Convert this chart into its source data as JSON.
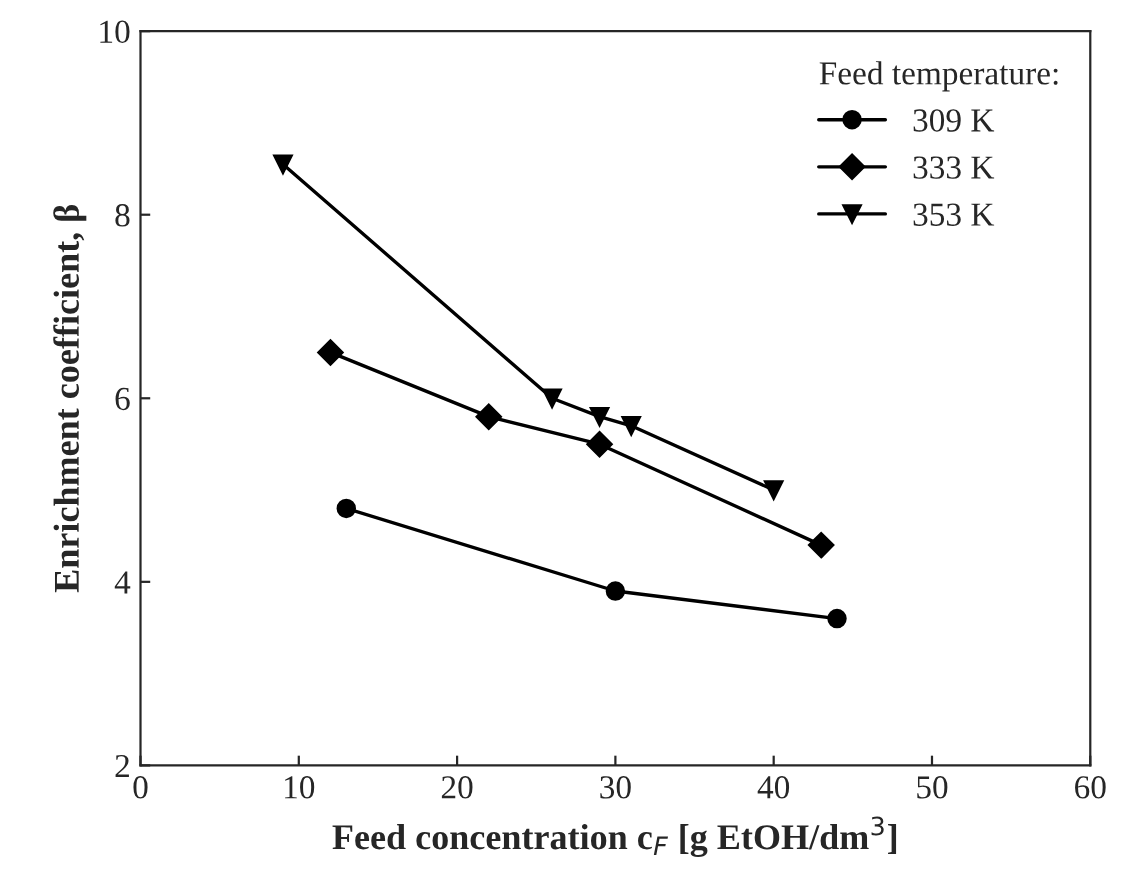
{
  "chart_data": {
    "type": "line",
    "xlabel": "Feed concentration c$_{F}$ [g EtOH/dm$^{3}$]",
    "ylabel": "Enrichment coefficient, β",
    "legend_title": "Feed temperature:",
    "legend": "top right",
    "grid": false,
    "xlim": [
      0,
      60
    ],
    "xticks": [
      0,
      10,
      20,
      30,
      40,
      50,
      60
    ],
    "ylim": [
      2,
      10
    ],
    "yticks": [
      2,
      4,
      6,
      8,
      10
    ],
    "series": [
      {
        "name": "309 K",
        "color": "#000000",
        "marker": "circle",
        "x": [
          13,
          30,
          44
        ],
        "values": [
          4.8,
          3.9,
          3.6
        ]
      },
      {
        "name": "333 K",
        "color": "#000000",
        "marker": "diamond",
        "x": [
          12,
          22,
          29,
          43
        ],
        "values": [
          6.5,
          5.8,
          5.5,
          4.4
        ]
      },
      {
        "name": "353 K",
        "color": "#000000",
        "marker": "triangle",
        "x": [
          9,
          26,
          29,
          31,
          40
        ],
        "values": [
          8.55,
          6.0,
          5.8,
          5.7,
          5.0
        ]
      }
    ]
  }
}
